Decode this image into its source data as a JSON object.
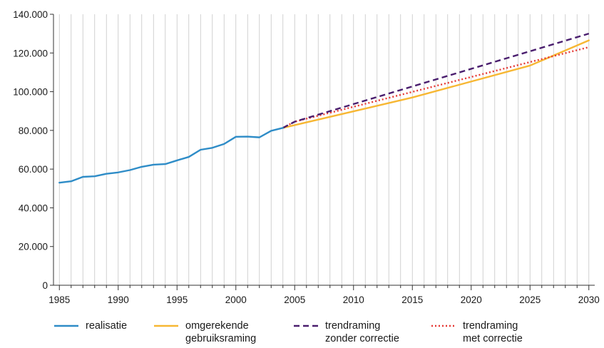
{
  "chart_data": {
    "type": "line",
    "title": "",
    "xlabel": "",
    "ylabel": "",
    "xlim": [
      1984.5,
      2030.5
    ],
    "ylim": [
      0,
      140000
    ],
    "x_ticks": [
      1985,
      1990,
      1995,
      2000,
      2005,
      2010,
      2015,
      2020,
      2025,
      2030
    ],
    "x_tick_labels": [
      "1985",
      "1990",
      "1995",
      "2000",
      "2005",
      "2010",
      "2015",
      "2020",
      "2025",
      "2030"
    ],
    "y_ticks": [
      0,
      20000,
      40000,
      60000,
      80000,
      100000,
      120000,
      140000
    ],
    "y_tick_labels": [
      "0",
      "20.000",
      "40.000",
      "60.000",
      "80.000",
      "100.000",
      "120.000",
      "140.000"
    ],
    "grid": "vertical lines at each year",
    "legend_position": "bottom",
    "series": [
      {
        "name": "realisatie",
        "color": "#2e8cc7",
        "style": "solid",
        "x": [
          1985,
          1986,
          1987,
          1988,
          1989,
          1990,
          1991,
          1992,
          1993,
          1994,
          1995,
          1996,
          1997,
          1998,
          1999,
          2000,
          2001,
          2002,
          2003,
          2004
        ],
        "y": [
          53000,
          53700,
          56000,
          56300,
          57600,
          58300,
          59500,
          61200,
          62300,
          62600,
          64500,
          66300,
          70000,
          71000,
          73000,
          76700,
          76800,
          76400,
          79800,
          81300
        ]
      },
      {
        "name": "omgerekende\ngebruiksraming",
        "color": "#f7b733",
        "style": "solid",
        "x": [
          2004,
          2015,
          2025,
          2030
        ],
        "y": [
          81300,
          97000,
          113500,
          126500
        ]
      },
      {
        "name": "trendraming\nzonder correctie",
        "color": "#4a1e6e",
        "style": "dashed",
        "x": [
          2004,
          2005,
          2030
        ],
        "y": [
          81300,
          84500,
          130000
        ]
      },
      {
        "name": "trendraming\nmet correctie",
        "color": "#e53935",
        "style": "dotted",
        "x": [
          2004,
          2005,
          2030
        ],
        "y": [
          81300,
          84500,
          123000
        ]
      }
    ]
  }
}
